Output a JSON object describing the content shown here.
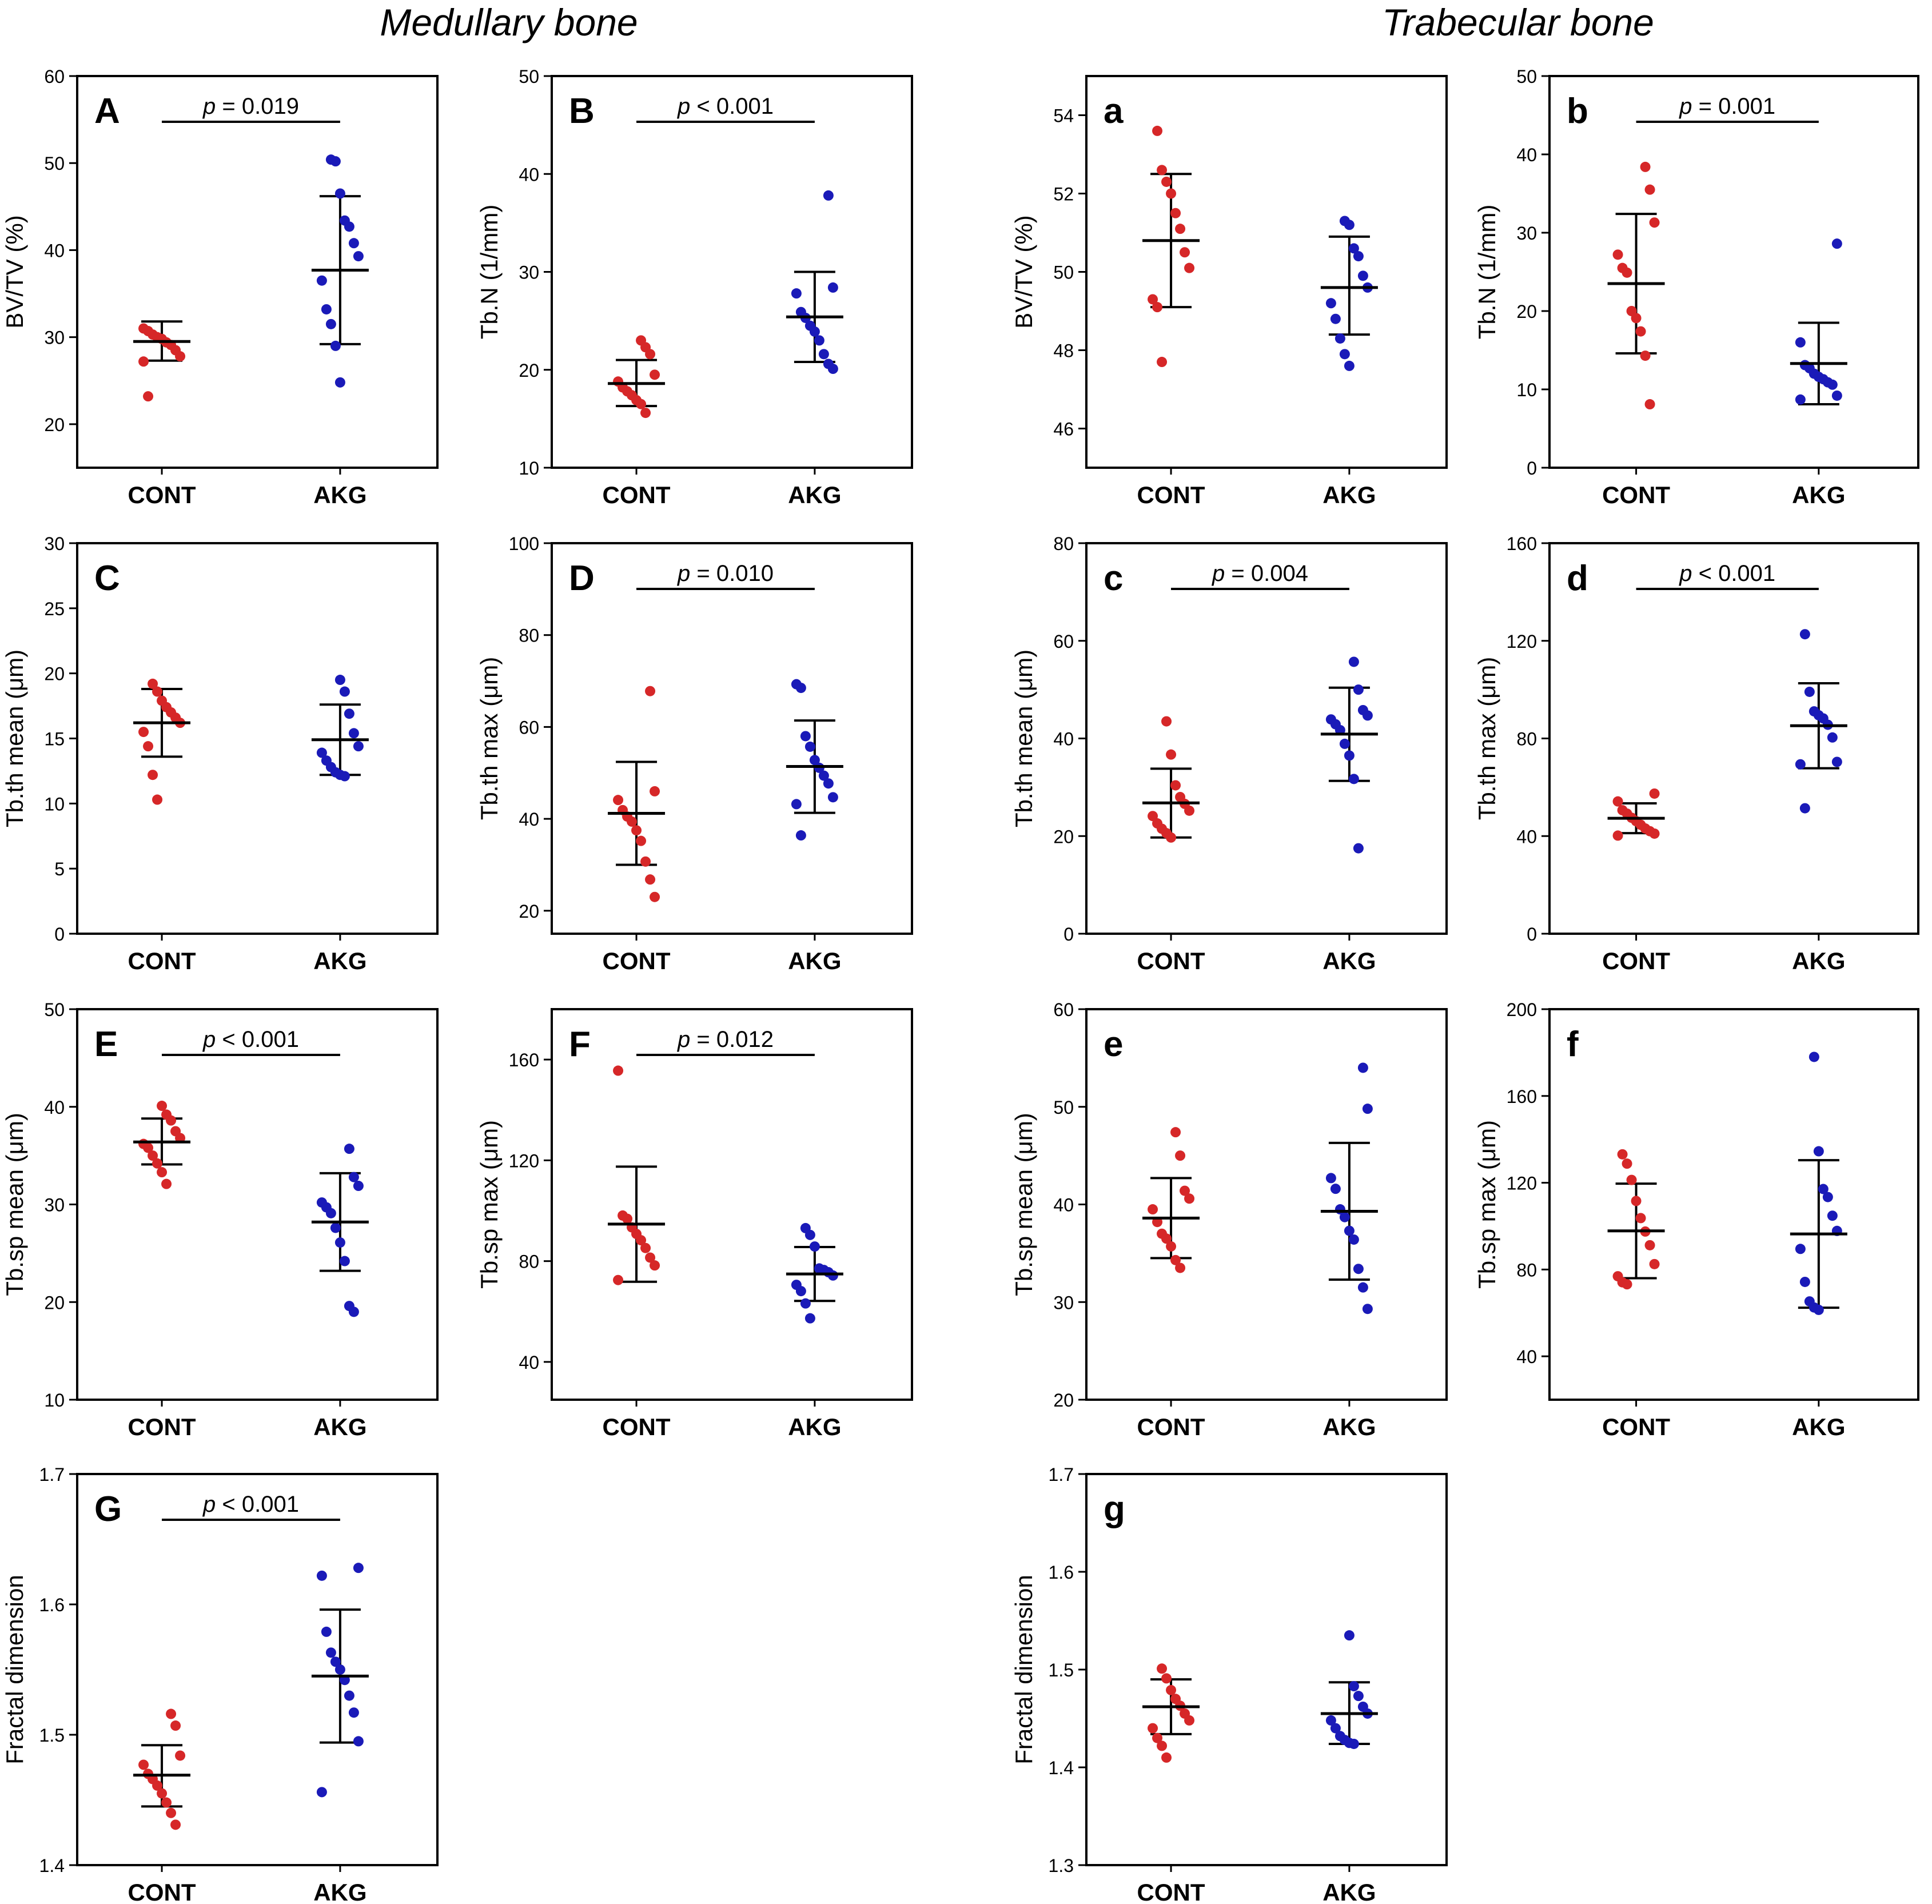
{
  "titles": {
    "left": "Medullary bone",
    "right": "Trabecular bone"
  },
  "group_colors": {
    "CONT": "#d62728",
    "AKG": "#1a1ab8"
  },
  "chart_data": [
    {
      "panel": "A",
      "type": "scatter",
      "ylabel": "BV/TV (%)",
      "ylim": [
        15,
        60
      ],
      "yticks": [
        20,
        30,
        40,
        50,
        60
      ],
      "categories": [
        "CONT",
        "AKG"
      ],
      "p_value": "= 0.019",
      "series": [
        {
          "name": "CONT",
          "mean": 29.5,
          "sd_low": 27.3,
          "sd_high": 31.8,
          "points": [
            31.0,
            30.7,
            30.3,
            30.0,
            29.8,
            29.4,
            29.1,
            28.5,
            27.8,
            27.2,
            23.2
          ]
        },
        {
          "name": "AKG",
          "mean": 37.7,
          "sd_low": 29.2,
          "sd_high": 46.2,
          "points": [
            50.4,
            50.2,
            46.5,
            43.4,
            42.7,
            40.8,
            39.3,
            36.5,
            33.2,
            31.5,
            29.0,
            24.8
          ]
        }
      ]
    },
    {
      "panel": "B",
      "type": "scatter",
      "ylabel": "Tb.N (1/mm)",
      "ylim": [
        10,
        50
      ],
      "yticks": [
        10,
        20,
        30,
        40,
        50
      ],
      "categories": [
        "CONT",
        "AKG"
      ],
      "p_value": "< 0.001",
      "series": [
        {
          "name": "CONT",
          "mean": 18.6,
          "sd_low": 16.3,
          "sd_high": 21.0,
          "points": [
            23.0,
            22.3,
            21.6,
            19.5,
            18.8,
            18.2,
            17.8,
            17.4,
            16.9,
            16.5,
            15.6
          ]
        },
        {
          "name": "AKG",
          "mean": 25.4,
          "sd_low": 20.8,
          "sd_high": 30.0,
          "points": [
            37.8,
            28.4,
            27.8,
            25.9,
            25.3,
            24.5,
            23.9,
            23.0,
            21.6,
            20.6,
            20.1
          ]
        }
      ]
    },
    {
      "panel": "a",
      "type": "scatter",
      "ylabel": "BV/TV (%)",
      "ylim": [
        45,
        55
      ],
      "yticks": [
        46,
        48,
        50,
        52,
        54
      ],
      "categories": [
        "CONT",
        "AKG"
      ],
      "p_value": "",
      "series": [
        {
          "name": "CONT",
          "mean": 50.8,
          "sd_low": 49.1,
          "sd_high": 52.5,
          "points": [
            53.6,
            52.6,
            52.3,
            52.0,
            51.5,
            51.1,
            50.5,
            50.1,
            49.3,
            49.1,
            47.7
          ]
        },
        {
          "name": "AKG",
          "mean": 49.6,
          "sd_low": 48.4,
          "sd_high": 50.9,
          "points": [
            51.3,
            51.2,
            50.6,
            50.4,
            49.9,
            49.6,
            49.2,
            48.8,
            48.3,
            47.9,
            47.6
          ]
        }
      ]
    },
    {
      "panel": "b",
      "type": "scatter",
      "ylabel": "Tb.N (1/mm)",
      "ylim": [
        0,
        50
      ],
      "yticks": [
        0,
        10,
        20,
        30,
        40,
        50
      ],
      "categories": [
        "CONT",
        "AKG"
      ],
      "p_value": "= 0.001",
      "series": [
        {
          "name": "CONT",
          "mean": 23.5,
          "sd_low": 14.6,
          "sd_high": 32.4,
          "points": [
            38.4,
            35.5,
            31.3,
            27.2,
            25.5,
            24.9,
            20.0,
            19.1,
            17.4,
            14.3,
            8.1
          ]
        },
        {
          "name": "AKG",
          "mean": 13.3,
          "sd_low": 8.1,
          "sd_high": 18.5,
          "points": [
            28.6,
            16.0,
            13.1,
            12.7,
            12.0,
            11.6,
            11.3,
            10.9,
            10.6,
            9.2,
            8.7
          ]
        }
      ]
    },
    {
      "panel": "C",
      "type": "scatter",
      "ylabel": "Tb.th mean (μm)",
      "ylim": [
        0,
        30
      ],
      "yticks": [
        0,
        5,
        10,
        15,
        20,
        25,
        30
      ],
      "categories": [
        "CONT",
        "AKG"
      ],
      "p_value": "",
      "series": [
        {
          "name": "CONT",
          "mean": 16.2,
          "sd_low": 13.6,
          "sd_high": 18.8,
          "points": [
            19.2,
            18.6,
            17.9,
            17.4,
            17.0,
            16.6,
            16.2,
            15.5,
            14.4,
            12.2,
            10.3
          ]
        },
        {
          "name": "AKG",
          "mean": 14.9,
          "sd_low": 12.2,
          "sd_high": 17.6,
          "points": [
            19.5,
            18.6,
            16.9,
            15.4,
            14.4,
            13.9,
            13.3,
            12.8,
            12.4,
            12.2,
            12.1
          ]
        }
      ]
    },
    {
      "panel": "D",
      "type": "scatter",
      "ylabel": "Tb.th max (μm)",
      "ylim": [
        15,
        100
      ],
      "yticks": [
        20,
        40,
        60,
        80,
        100
      ],
      "categories": [
        "CONT",
        "AKG"
      ],
      "p_value": "= 0.010",
      "series": [
        {
          "name": "CONT",
          "mean": 41.2,
          "sd_low": 30.0,
          "sd_high": 52.4,
          "points": [
            67.8,
            46.0,
            44.1,
            41.9,
            40.5,
            39.4,
            37.5,
            35.2,
            30.7,
            26.8,
            23.0
          ]
        },
        {
          "name": "AKG",
          "mean": 51.4,
          "sd_low": 41.3,
          "sd_high": 61.4,
          "points": [
            69.3,
            68.5,
            58.0,
            55.7,
            52.8,
            51.1,
            49.4,
            47.7,
            44.7,
            43.2,
            36.4
          ]
        }
      ]
    },
    {
      "panel": "c",
      "type": "scatter",
      "ylabel": "Tb.th mean (μm)",
      "ylim": [
        0,
        80
      ],
      "yticks": [
        0,
        20,
        40,
        60,
        80
      ],
      "categories": [
        "CONT",
        "AKG"
      ],
      "p_value": "= 0.004",
      "series": [
        {
          "name": "CONT",
          "mean": 26.8,
          "sd_low": 19.7,
          "sd_high": 33.8,
          "points": [
            43.5,
            36.7,
            30.4,
            28.0,
            26.6,
            25.2,
            24.1,
            22.6,
            21.5,
            20.6,
            19.7
          ]
        },
        {
          "name": "AKG",
          "mean": 40.9,
          "sd_low": 31.3,
          "sd_high": 50.4,
          "points": [
            55.7,
            50.0,
            45.8,
            44.7,
            43.9,
            42.9,
            41.7,
            38.9,
            36.5,
            31.7,
            17.5
          ]
        }
      ]
    },
    {
      "panel": "d",
      "type": "scatter",
      "ylabel": "Tb.th max (μm)",
      "ylim": [
        0,
        160
      ],
      "yticks": [
        0,
        40,
        80,
        120,
        160
      ],
      "categories": [
        "CONT",
        "AKG"
      ],
      "p_value": "< 0.001",
      "series": [
        {
          "name": "CONT",
          "mean": 47.3,
          "sd_low": 41.2,
          "sd_high": 53.4,
          "points": [
            57.4,
            54.2,
            50.6,
            49.2,
            47.5,
            46.1,
            44.6,
            43.1,
            42.0,
            41.0,
            40.2
          ]
        },
        {
          "name": "AKG",
          "mean": 85.2,
          "sd_low": 67.8,
          "sd_high": 102.6,
          "points": [
            122.7,
            99.1,
            91.1,
            89.5,
            88.2,
            85.6,
            80.4,
            70.4,
            69.4,
            51.4
          ]
        }
      ]
    },
    {
      "panel": "E",
      "type": "scatter",
      "ylabel": "Tb.sp mean (μm)",
      "ylim": [
        10,
        50
      ],
      "yticks": [
        10,
        20,
        30,
        40,
        50
      ],
      "categories": [
        "CONT",
        "AKG"
      ],
      "p_value": "< 0.001",
      "series": [
        {
          "name": "CONT",
          "mean": 36.4,
          "sd_low": 34.1,
          "sd_high": 38.8,
          "points": [
            40.1,
            39.2,
            38.6,
            37.5,
            36.8,
            36.2,
            35.8,
            35.0,
            34.2,
            33.3,
            32.1
          ]
        },
        {
          "name": "AKG",
          "mean": 28.2,
          "sd_low": 23.2,
          "sd_high": 33.2,
          "points": [
            35.7,
            32.8,
            31.9,
            30.2,
            29.7,
            29.1,
            27.6,
            26.1,
            24.2,
            19.6,
            19.0
          ]
        }
      ]
    },
    {
      "panel": "F",
      "type": "scatter",
      "ylabel": "Tb.sp max (μm)",
      "ylim": [
        25,
        180
      ],
      "yticks": [
        40,
        80,
        120,
        160
      ],
      "categories": [
        "CONT",
        "AKG"
      ],
      "p_value": "= 0.012",
      "series": [
        {
          "name": "CONT",
          "mean": 94.7,
          "sd_low": 71.8,
          "sd_high": 117.5,
          "points": [
            155.6,
            98.1,
            96.8,
            93.4,
            90.8,
            88.3,
            85.2,
            81.4,
            78.3,
            72.5
          ]
        },
        {
          "name": "AKG",
          "mean": 74.9,
          "sd_low": 64.2,
          "sd_high": 85.6,
          "points": [
            93.1,
            90.4,
            85.8,
            77.1,
            76.5,
            75.6,
            74.3,
            70.6,
            68.1,
            63.2,
            57.3
          ]
        }
      ]
    },
    {
      "panel": "e",
      "type": "scatter",
      "ylabel": "Tb.sp mean (μm)",
      "ylim": [
        20,
        60
      ],
      "yticks": [
        20,
        30,
        40,
        50,
        60
      ],
      "categories": [
        "CONT",
        "AKG"
      ],
      "p_value": "",
      "series": [
        {
          "name": "CONT",
          "mean": 38.6,
          "sd_low": 34.5,
          "sd_high": 42.7,
          "points": [
            47.4,
            45.0,
            41.4,
            40.6,
            39.5,
            38.2,
            37.0,
            36.5,
            35.7,
            34.3,
            33.5
          ]
        },
        {
          "name": "AKG",
          "mean": 39.3,
          "sd_low": 32.3,
          "sd_high": 46.3,
          "points": [
            54.0,
            49.8,
            42.7,
            41.6,
            39.5,
            38.7,
            37.3,
            36.4,
            33.4,
            31.5,
            29.3
          ]
        }
      ]
    },
    {
      "panel": "f",
      "type": "scatter",
      "ylabel": "Tb.sp max (μm)",
      "ylim": [
        20,
        200
      ],
      "yticks": [
        40,
        80,
        120,
        160,
        200
      ],
      "categories": [
        "CONT",
        "AKG"
      ],
      "p_value": "",
      "series": [
        {
          "name": "CONT",
          "mean": 97.8,
          "sd_low": 76.0,
          "sd_high": 119.6,
          "points": [
            133.1,
            128.8,
            121.3,
            111.6,
            103.7,
            97.5,
            91.2,
            82.5,
            76.9,
            74.1,
            73.2
          ]
        },
        {
          "name": "AKG",
          "mean": 96.4,
          "sd_low": 62.4,
          "sd_high": 130.4,
          "points": [
            178.0,
            134.5,
            117.1,
            113.4,
            104.8,
            97.8,
            89.5,
            74.3,
            65.3,
            62.5,
            61.4
          ]
        }
      ]
    },
    {
      "panel": "G",
      "type": "scatter",
      "ylabel": "Fractal dimension",
      "ylim": [
        1.4,
        1.7
      ],
      "yticks": [
        1.4,
        1.5,
        1.6,
        1.7
      ],
      "categories": [
        "CONT",
        "AKG"
      ],
      "p_value": "< 0.001",
      "series": [
        {
          "name": "CONT",
          "mean": 1.469,
          "sd_low": 1.445,
          "sd_high": 1.492,
          "points": [
            1.516,
            1.507,
            1.484,
            1.477,
            1.47,
            1.466,
            1.461,
            1.455,
            1.448,
            1.44,
            1.431
          ]
        },
        {
          "name": "AKG",
          "mean": 1.545,
          "sd_low": 1.494,
          "sd_high": 1.596,
          "points": [
            1.628,
            1.622,
            1.579,
            1.563,
            1.556,
            1.55,
            1.542,
            1.53,
            1.517,
            1.495,
            1.456
          ]
        }
      ]
    },
    {
      "panel": "g",
      "type": "scatter",
      "ylabel": "Fractal dimension",
      "ylim": [
        1.3,
        1.7
      ],
      "yticks": [
        1.3,
        1.4,
        1.5,
        1.6,
        1.7
      ],
      "categories": [
        "CONT",
        "AKG"
      ],
      "p_value": "",
      "series": [
        {
          "name": "CONT",
          "mean": 1.462,
          "sd_low": 1.434,
          "sd_high": 1.49,
          "points": [
            1.501,
            1.491,
            1.479,
            1.47,
            1.463,
            1.455,
            1.448,
            1.44,
            1.43,
            1.422,
            1.41
          ]
        },
        {
          "name": "AKG",
          "mean": 1.455,
          "sd_low": 1.424,
          "sd_high": 1.487,
          "points": [
            1.535,
            1.483,
            1.473,
            1.462,
            1.455,
            1.448,
            1.44,
            1.432,
            1.428,
            1.425,
            1.424
          ]
        }
      ]
    }
  ]
}
